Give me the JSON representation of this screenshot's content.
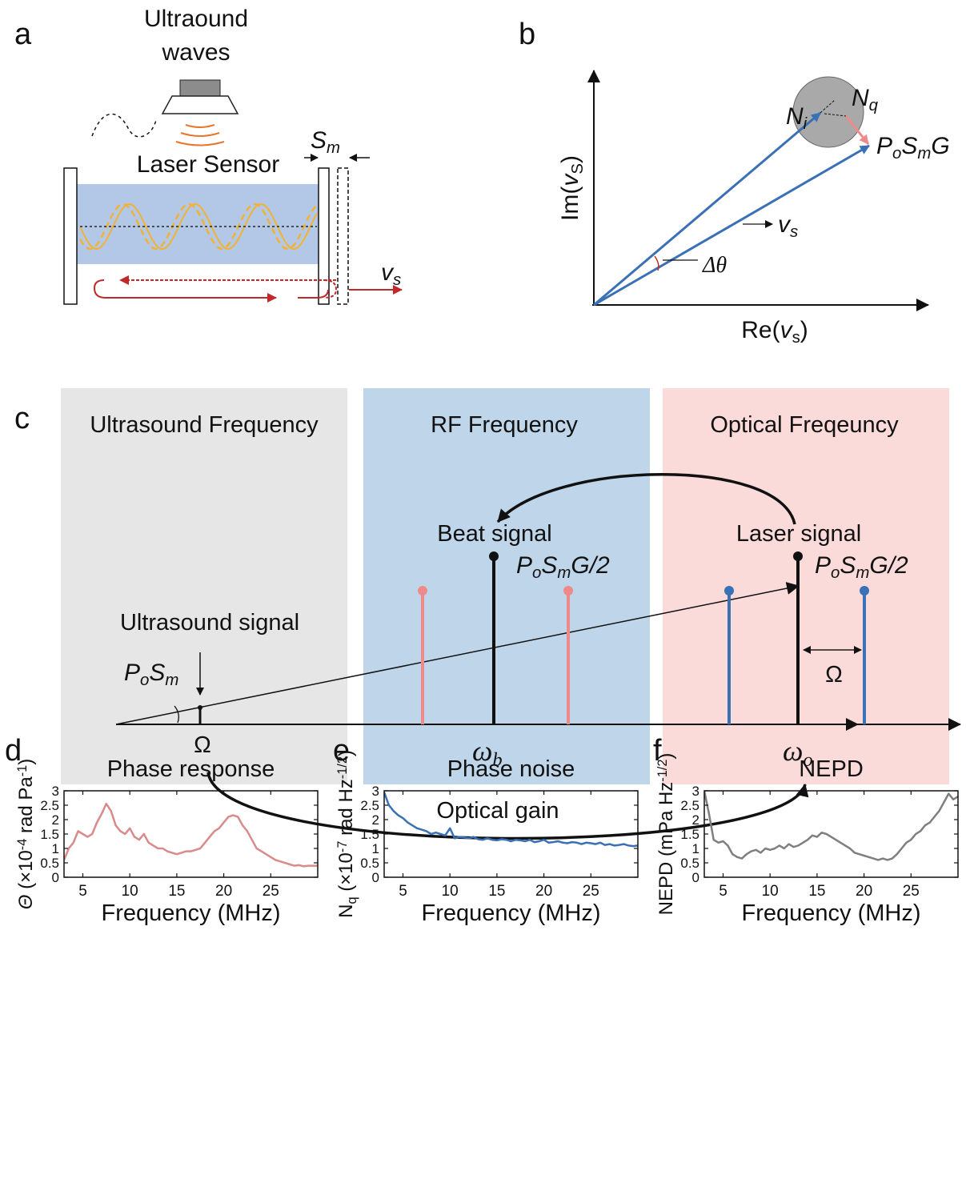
{
  "panel_a": {
    "label": "a",
    "title": [
      "Ultraound",
      "waves"
    ],
    "sensor": "Laser Sensor",
    "s_m": [
      "S",
      "m"
    ],
    "v_s": [
      "v",
      "s"
    ]
  },
  "panel_b": {
    "label": "b",
    "n_i": [
      "N",
      "i"
    ],
    "n_q": [
      "N",
      "q"
    ],
    "signal": [
      "P",
      "o",
      "S",
      "m",
      "G"
    ],
    "y_axis": [
      "Im(",
      "v",
      "S",
      ")"
    ],
    "v_s": [
      "v",
      "s"
    ],
    "delta": "Δθ",
    "x_axis": [
      "Re(",
      "v",
      "s",
      ")"
    ]
  },
  "panel_c": {
    "label": "c",
    "bands": [
      "Ultrasound Frequency",
      "RF Frequency",
      "Optical Freqeuncy"
    ],
    "beat": "Beat signal",
    "beat_amp": [
      "P",
      "o",
      "S",
      "m",
      "G/2"
    ],
    "laser": "Laser signal",
    "laser_amp": [
      "P",
      "o",
      "S",
      "m",
      "G/2"
    ],
    "ultrasound": "Ultrasound signal",
    "ultrasound_amp": [
      "P",
      "o",
      "S",
      "m"
    ],
    "omega": "Ω",
    "omega_b": [
      "ω",
      "b"
    ],
    "omega_o": [
      "ω",
      "o"
    ],
    "offset": "Ω",
    "gain": "Optical gain"
  },
  "chart_data": [
    {
      "type": "line",
      "label": "d",
      "title": "Phase response",
      "color": "#d98a8a",
      "xlabel": "Frequency (MHz)",
      "ylabel": [
        "Θ",
        " (×10",
        "-4",
        " rad Pa",
        "-1",
        ")"
      ],
      "xlim": [
        3,
        30
      ],
      "ylim": [
        0,
        3
      ],
      "xticks": [
        5,
        10,
        15,
        20,
        25
      ],
      "yticks": [
        0,
        0.5,
        1,
        1.5,
        2,
        2.5,
        3
      ],
      "x": [
        3,
        3.5,
        4,
        4.5,
        5,
        5.5,
        6,
        6.5,
        7,
        7.5,
        8,
        8.5,
        9,
        9.5,
        10,
        10.5,
        11,
        11.5,
        12,
        12.5,
        13,
        13.5,
        14,
        14.5,
        15,
        15.5,
        16,
        16.5,
        17,
        17.5,
        18,
        18.5,
        19,
        19.5,
        20,
        20.5,
        21,
        21.5,
        22,
        22.5,
        23,
        23.5,
        24,
        24.5,
        25,
        25.5,
        26,
        26.5,
        27,
        27.5,
        28,
        28.5,
        29,
        29.5,
        30
      ],
      "values": [
        0.6,
        1.0,
        1.2,
        1.6,
        1.5,
        1.4,
        1.5,
        1.9,
        2.2,
        2.55,
        2.3,
        1.8,
        1.6,
        1.5,
        1.7,
        1.4,
        1.3,
        1.5,
        1.2,
        1.1,
        1.0,
        1.0,
        0.9,
        0.85,
        0.8,
        0.85,
        0.9,
        0.9,
        0.95,
        1.0,
        1.2,
        1.4,
        1.6,
        1.7,
        1.9,
        2.1,
        2.15,
        2.1,
        1.8,
        1.6,
        1.3,
        1.0,
        0.9,
        0.8,
        0.7,
        0.6,
        0.55,
        0.5,
        0.45,
        0.4,
        0.42,
        0.38,
        0.4,
        0.4,
        0.4
      ]
    },
    {
      "type": "line",
      "label": "e",
      "title": "Phase noise",
      "color": "#3a70b6",
      "xlabel": "Frequency (MHz)",
      "ylabel": [
        "N",
        "q",
        " (×10",
        "-7",
        " rad Hz",
        "-1/2",
        ")"
      ],
      "xlim": [
        3,
        30
      ],
      "ylim": [
        0,
        3
      ],
      "xticks": [
        5,
        10,
        15,
        20,
        25
      ],
      "yticks": [
        0,
        0.5,
        1,
        1.5,
        2,
        2.5,
        3
      ],
      "x": [
        3,
        3.5,
        4,
        4.5,
        5,
        5.5,
        6,
        6.5,
        7,
        7.5,
        8,
        8.5,
        9,
        9.5,
        10,
        10.5,
        11,
        11.5,
        12,
        12.5,
        13,
        13.5,
        14,
        14.5,
        15,
        15.5,
        16,
        16.5,
        17,
        17.5,
        18,
        18.5,
        19,
        19.5,
        20,
        20.5,
        21,
        21.5,
        22,
        22.5,
        23,
        23.5,
        24,
        24.5,
        25,
        25.5,
        26,
        26.5,
        27,
        27.5,
        28,
        28.5,
        29,
        29.5,
        30
      ],
      "values": [
        2.95,
        2.5,
        2.3,
        2.15,
        2.05,
        1.9,
        1.8,
        1.7,
        1.65,
        1.6,
        1.5,
        1.55,
        1.5,
        1.45,
        1.7,
        1.35,
        1.4,
        1.38,
        1.35,
        1.4,
        1.32,
        1.3,
        1.35,
        1.3,
        1.28,
        1.32,
        1.3,
        1.25,
        1.3,
        1.28,
        1.25,
        1.3,
        1.22,
        1.25,
        1.3,
        1.2,
        1.22,
        1.25,
        1.2,
        1.18,
        1.22,
        1.2,
        1.15,
        1.2,
        1.18,
        1.15,
        1.2,
        1.12,
        1.15,
        1.1,
        1.12,
        1.15,
        1.1,
        1.08,
        1.1
      ]
    },
    {
      "type": "line",
      "label": "f",
      "title": "NEPD",
      "color": "#7f7f7f",
      "xlabel": "Frequency (MHz)",
      "ylabel": [
        "NEPD (mPa Hz",
        "-1/2",
        ")"
      ],
      "xlim": [
        3,
        30
      ],
      "ylim": [
        0,
        3
      ],
      "xticks": [
        5,
        10,
        15,
        20,
        25
      ],
      "yticks": [
        0,
        0.5,
        1,
        1.5,
        2,
        2.5,
        3
      ],
      "x": [
        3,
        3.5,
        4,
        4.5,
        5,
        5.5,
        6,
        6.5,
        7,
        7.5,
        8,
        8.5,
        9,
        9.5,
        10,
        10.5,
        11,
        11.5,
        12,
        12.5,
        13,
        13.5,
        14,
        14.5,
        15,
        15.5,
        16,
        16.5,
        17,
        17.5,
        18,
        18.5,
        19,
        19.5,
        20,
        20.5,
        21,
        21.5,
        22,
        22.5,
        23,
        23.5,
        24,
        24.5,
        25,
        25.5,
        26,
        26.5,
        27,
        27.5,
        28,
        28.5,
        29,
        29.5,
        30
      ],
      "values": [
        3.0,
        2.2,
        1.3,
        1.2,
        1.25,
        1.1,
        0.8,
        0.7,
        0.65,
        0.8,
        0.9,
        0.95,
        0.85,
        1.0,
        0.95,
        1.0,
        1.1,
        1.0,
        1.15,
        1.05,
        1.1,
        1.2,
        1.3,
        1.45,
        1.4,
        1.55,
        1.5,
        1.4,
        1.3,
        1.2,
        1.1,
        1.0,
        0.85,
        0.8,
        0.75,
        0.7,
        0.65,
        0.6,
        0.65,
        0.6,
        0.65,
        0.8,
        1.0,
        1.2,
        1.3,
        1.5,
        1.6,
        1.8,
        1.9,
        2.1,
        2.3,
        2.6,
        2.9,
        2.7,
        2.8
      ]
    }
  ]
}
